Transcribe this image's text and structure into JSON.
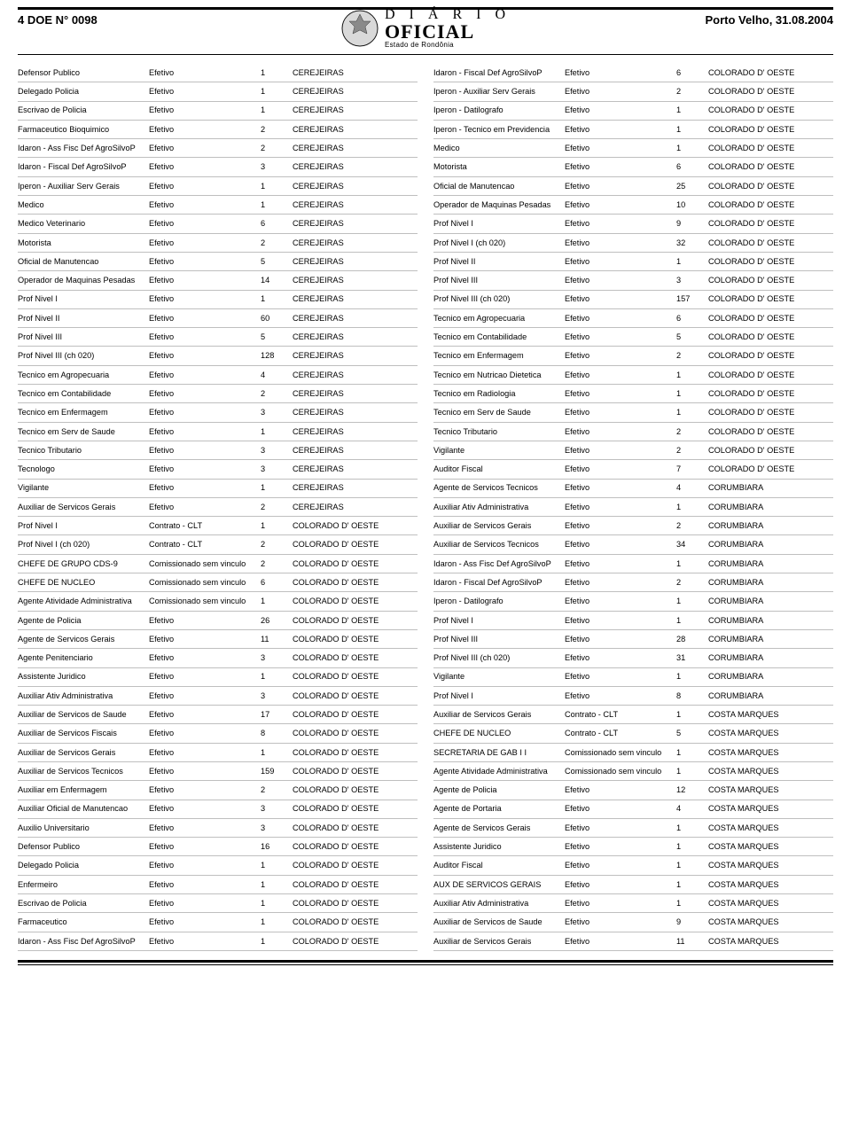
{
  "header": {
    "left": "4   DOE N° 0098",
    "right": "Porto Velho, 31.08.2004",
    "masthead_line1": "D I Á R I O",
    "masthead_line2": "OFICIAL",
    "masthead_sub": "Estado de Rondônia"
  },
  "colors": {
    "rule": "#000000",
    "row_border": "#bfbfbf",
    "text": "#000000",
    "seal_fill": "#8a8a8a",
    "seal_stroke": "#333333"
  },
  "left_rows": [
    {
      "cargo": "Defensor Publico",
      "vinc": "Efetivo",
      "qtd": "1",
      "loc": "CEREJEIRAS"
    },
    {
      "cargo": "Delegado Policia",
      "vinc": "Efetivo",
      "qtd": "1",
      "loc": "CEREJEIRAS"
    },
    {
      "cargo": "Escrivao de Policia",
      "vinc": "Efetivo",
      "qtd": "1",
      "loc": "CEREJEIRAS"
    },
    {
      "cargo": "Farmaceutico Bioquimico",
      "vinc": "Efetivo",
      "qtd": "2",
      "loc": "CEREJEIRAS"
    },
    {
      "cargo": "Idaron - Ass Fisc Def AgroSilvoP",
      "vinc": "Efetivo",
      "qtd": "2",
      "loc": "CEREJEIRAS"
    },
    {
      "cargo": "Idaron - Fiscal Def AgroSilvoP",
      "vinc": "Efetivo",
      "qtd": "3",
      "loc": "CEREJEIRAS"
    },
    {
      "cargo": "Iperon - Auxiliar Serv Gerais",
      "vinc": "Efetivo",
      "qtd": "1",
      "loc": "CEREJEIRAS"
    },
    {
      "cargo": "Medico",
      "vinc": "Efetivo",
      "qtd": "1",
      "loc": "CEREJEIRAS"
    },
    {
      "cargo": "Medico Veterinario",
      "vinc": "Efetivo",
      "qtd": "6",
      "loc": "CEREJEIRAS"
    },
    {
      "cargo": "Motorista",
      "vinc": "Efetivo",
      "qtd": "2",
      "loc": "CEREJEIRAS"
    },
    {
      "cargo": "Oficial de Manutencao",
      "vinc": "Efetivo",
      "qtd": "5",
      "loc": "CEREJEIRAS"
    },
    {
      "cargo": "Operador de Maquinas Pesadas",
      "vinc": "Efetivo",
      "qtd": "14",
      "loc": "CEREJEIRAS"
    },
    {
      "cargo": "Prof Nivel I",
      "vinc": "Efetivo",
      "qtd": "1",
      "loc": "CEREJEIRAS"
    },
    {
      "cargo": "Prof Nivel II",
      "vinc": "Efetivo",
      "qtd": "60",
      "loc": "CEREJEIRAS"
    },
    {
      "cargo": "Prof Nivel III",
      "vinc": "Efetivo",
      "qtd": "5",
      "loc": "CEREJEIRAS"
    },
    {
      "cargo": "Prof Nivel III (ch 020)",
      "vinc": "Efetivo",
      "qtd": "128",
      "loc": "CEREJEIRAS"
    },
    {
      "cargo": "Tecnico em Agropecuaria",
      "vinc": "Efetivo",
      "qtd": "4",
      "loc": "CEREJEIRAS"
    },
    {
      "cargo": "Tecnico em Contabilidade",
      "vinc": "Efetivo",
      "qtd": "2",
      "loc": "CEREJEIRAS"
    },
    {
      "cargo": "Tecnico em Enfermagem",
      "vinc": "Efetivo",
      "qtd": "3",
      "loc": "CEREJEIRAS"
    },
    {
      "cargo": "Tecnico em Serv de Saude",
      "vinc": "Efetivo",
      "qtd": "1",
      "loc": "CEREJEIRAS"
    },
    {
      "cargo": "Tecnico Tributario",
      "vinc": "Efetivo",
      "qtd": "3",
      "loc": "CEREJEIRAS"
    },
    {
      "cargo": "Tecnologo",
      "vinc": "Efetivo",
      "qtd": "3",
      "loc": "CEREJEIRAS"
    },
    {
      "cargo": "Vigilante",
      "vinc": "Efetivo",
      "qtd": "1",
      "loc": "CEREJEIRAS"
    },
    {
      "cargo": "Auxiliar de Servicos Gerais",
      "vinc": "Efetivo",
      "qtd": "2",
      "loc": "CEREJEIRAS"
    },
    {
      "cargo": "Prof Nivel I",
      "vinc": "Contrato - CLT",
      "qtd": "1",
      "loc": "COLORADO D' OESTE"
    },
    {
      "cargo": "Prof Nivel I (ch 020)",
      "vinc": "Contrato - CLT",
      "qtd": "2",
      "loc": "COLORADO D' OESTE"
    },
    {
      "cargo": "CHEFE DE GRUPO    CDS-9",
      "vinc": "Comissionado sem vinculo",
      "qtd": "2",
      "loc": "COLORADO D' OESTE"
    },
    {
      "cargo": "CHEFE DE NUCLEO",
      "vinc": "Comissionado sem vinculo",
      "qtd": "6",
      "loc": "COLORADO D' OESTE"
    },
    {
      "cargo": "Agente Atividade Administrativa",
      "vinc": "Comissionado sem vinculo",
      "qtd": "1",
      "loc": "COLORADO D' OESTE"
    },
    {
      "cargo": "Agente de Policia",
      "vinc": "Efetivo",
      "qtd": "26",
      "loc": "COLORADO D' OESTE"
    },
    {
      "cargo": "Agente de Servicos Gerais",
      "vinc": "Efetivo",
      "qtd": "11",
      "loc": "COLORADO D' OESTE"
    },
    {
      "cargo": "Agente Penitenciario",
      "vinc": "Efetivo",
      "qtd": "3",
      "loc": "COLORADO D' OESTE"
    },
    {
      "cargo": "Assistente Juridico",
      "vinc": "Efetivo",
      "qtd": "1",
      "loc": "COLORADO D' OESTE"
    },
    {
      "cargo": "Auxiliar Ativ Administrativa",
      "vinc": "Efetivo",
      "qtd": "3",
      "loc": "COLORADO D' OESTE"
    },
    {
      "cargo": "Auxiliar de Servicos de Saude",
      "vinc": "Efetivo",
      "qtd": "17",
      "loc": "COLORADO D' OESTE"
    },
    {
      "cargo": "Auxiliar de Servicos Fiscais",
      "vinc": "Efetivo",
      "qtd": "8",
      "loc": "COLORADO D' OESTE"
    },
    {
      "cargo": "Auxiliar de Servicos Gerais",
      "vinc": "Efetivo",
      "qtd": "1",
      "loc": "COLORADO D' OESTE"
    },
    {
      "cargo": "Auxiliar de Servicos Tecnicos",
      "vinc": "Efetivo",
      "qtd": "159",
      "loc": "COLORADO D' OESTE"
    },
    {
      "cargo": "Auxiliar em Enfermagem",
      "vinc": "Efetivo",
      "qtd": "2",
      "loc": "COLORADO D' OESTE"
    },
    {
      "cargo": "Auxiliar Oficial de Manutencao",
      "vinc": "Efetivo",
      "qtd": "3",
      "loc": "COLORADO D' OESTE"
    },
    {
      "cargo": "Auxilio Universitario",
      "vinc": "Efetivo",
      "qtd": "3",
      "loc": "COLORADO D' OESTE"
    },
    {
      "cargo": "Defensor Publico",
      "vinc": "Efetivo",
      "qtd": "16",
      "loc": "COLORADO D' OESTE"
    },
    {
      "cargo": "Delegado Policia",
      "vinc": "Efetivo",
      "qtd": "1",
      "loc": "COLORADO D' OESTE"
    },
    {
      "cargo": "Enfermeiro",
      "vinc": "Efetivo",
      "qtd": "1",
      "loc": "COLORADO D' OESTE"
    },
    {
      "cargo": "Escrivao de Policia",
      "vinc": "Efetivo",
      "qtd": "1",
      "loc": "COLORADO D' OESTE"
    },
    {
      "cargo": "Farmaceutico",
      "vinc": "Efetivo",
      "qtd": "1",
      "loc": "COLORADO D' OESTE"
    },
    {
      "cargo": "Idaron - Ass Fisc Def AgroSilvoP",
      "vinc": "Efetivo",
      "qtd": "1",
      "loc": "COLORADO D' OESTE"
    }
  ],
  "right_rows": [
    {
      "cargo": "Idaron - Fiscal Def AgroSilvoP",
      "vinc": "Efetivo",
      "qtd": "6",
      "loc": "COLORADO D' OESTE"
    },
    {
      "cargo": "Iperon - Auxiliar Serv Gerais",
      "vinc": "Efetivo",
      "qtd": "2",
      "loc": "COLORADO D' OESTE"
    },
    {
      "cargo": "Iperon - Datilografo",
      "vinc": "Efetivo",
      "qtd": "1",
      "loc": "COLORADO D' OESTE"
    },
    {
      "cargo": "Iperon - Tecnico em Previdencia",
      "vinc": "Efetivo",
      "qtd": "1",
      "loc": "COLORADO D' OESTE"
    },
    {
      "cargo": "Medico",
      "vinc": "Efetivo",
      "qtd": "1",
      "loc": "COLORADO D' OESTE"
    },
    {
      "cargo": "Motorista",
      "vinc": "Efetivo",
      "qtd": "6",
      "loc": "COLORADO D' OESTE"
    },
    {
      "cargo": "Oficial de Manutencao",
      "vinc": "Efetivo",
      "qtd": "25",
      "loc": "COLORADO D' OESTE"
    },
    {
      "cargo": "Operador de Maquinas Pesadas",
      "vinc": "Efetivo",
      "qtd": "10",
      "loc": "COLORADO D' OESTE"
    },
    {
      "cargo": "Prof Nivel I",
      "vinc": "Efetivo",
      "qtd": "9",
      "loc": "COLORADO D' OESTE"
    },
    {
      "cargo": "Prof Nivel I (ch 020)",
      "vinc": "Efetivo",
      "qtd": "32",
      "loc": "COLORADO D' OESTE"
    },
    {
      "cargo": "Prof Nivel II",
      "vinc": "Efetivo",
      "qtd": "1",
      "loc": "COLORADO D' OESTE"
    },
    {
      "cargo": "Prof Nivel III",
      "vinc": "Efetivo",
      "qtd": "3",
      "loc": "COLORADO D' OESTE"
    },
    {
      "cargo": "Prof Nivel III (ch 020)",
      "vinc": "Efetivo",
      "qtd": "157",
      "loc": "COLORADO D' OESTE"
    },
    {
      "cargo": "Tecnico em Agropecuaria",
      "vinc": "Efetivo",
      "qtd": "6",
      "loc": "COLORADO D' OESTE"
    },
    {
      "cargo": "Tecnico em Contabilidade",
      "vinc": "Efetivo",
      "qtd": "5",
      "loc": "COLORADO D' OESTE"
    },
    {
      "cargo": "Tecnico em Enfermagem",
      "vinc": "Efetivo",
      "qtd": "2",
      "loc": "COLORADO D' OESTE"
    },
    {
      "cargo": "Tecnico em Nutricao Dietetica",
      "vinc": "Efetivo",
      "qtd": "1",
      "loc": "COLORADO D' OESTE"
    },
    {
      "cargo": "Tecnico em Radiologia",
      "vinc": "Efetivo",
      "qtd": "1",
      "loc": "COLORADO D' OESTE"
    },
    {
      "cargo": "Tecnico em Serv de Saude",
      "vinc": "Efetivo",
      "qtd": "1",
      "loc": "COLORADO D' OESTE"
    },
    {
      "cargo": "Tecnico Tributario",
      "vinc": "Efetivo",
      "qtd": "2",
      "loc": "COLORADO D' OESTE"
    },
    {
      "cargo": "Vigilante",
      "vinc": "Efetivo",
      "qtd": "2",
      "loc": "COLORADO D' OESTE"
    },
    {
      "cargo": "Auditor Fiscal",
      "vinc": "Efetivo",
      "qtd": "7",
      "loc": "COLORADO D' OESTE"
    },
    {
      "cargo": "Agente de Servicos Tecnicos",
      "vinc": "Efetivo",
      "qtd": "4",
      "loc": "CORUMBIARA"
    },
    {
      "cargo": "Auxiliar Ativ Administrativa",
      "vinc": "Efetivo",
      "qtd": "1",
      "loc": "CORUMBIARA"
    },
    {
      "cargo": "Auxiliar de Servicos Gerais",
      "vinc": "Efetivo",
      "qtd": "2",
      "loc": "CORUMBIARA"
    },
    {
      "cargo": "Auxiliar de Servicos Tecnicos",
      "vinc": "Efetivo",
      "qtd": "34",
      "loc": "CORUMBIARA"
    },
    {
      "cargo": "Idaron - Ass Fisc Def AgroSilvoP",
      "vinc": "Efetivo",
      "qtd": "1",
      "loc": "CORUMBIARA"
    },
    {
      "cargo": "Idaron - Fiscal Def AgroSilvoP",
      "vinc": "Efetivo",
      "qtd": "2",
      "loc": "CORUMBIARA"
    },
    {
      "cargo": "Iperon - Datilografo",
      "vinc": "Efetivo",
      "qtd": "1",
      "loc": "CORUMBIARA"
    },
    {
      "cargo": "Prof Nivel I",
      "vinc": "Efetivo",
      "qtd": "1",
      "loc": "CORUMBIARA"
    },
    {
      "cargo": "Prof Nivel III",
      "vinc": "Efetivo",
      "qtd": "28",
      "loc": "CORUMBIARA"
    },
    {
      "cargo": "Prof Nivel III (ch 020)",
      "vinc": "Efetivo",
      "qtd": "31",
      "loc": "CORUMBIARA"
    },
    {
      "cargo": "Vigilante",
      "vinc": "Efetivo",
      "qtd": "1",
      "loc": "CORUMBIARA"
    },
    {
      "cargo": "Prof Nivel I",
      "vinc": "Efetivo",
      "qtd": "8",
      "loc": "CORUMBIARA"
    },
    {
      "cargo": "Auxiliar de Servicos Gerais",
      "vinc": "Contrato - CLT",
      "qtd": "1",
      "loc": "COSTA MARQUES"
    },
    {
      "cargo": "CHEFE DE NUCLEO",
      "vinc": "Contrato - CLT",
      "qtd": "5",
      "loc": "COSTA MARQUES"
    },
    {
      "cargo": "SECRETARIA DE GAB I I",
      "vinc": "Comissionado sem vinculo",
      "qtd": "1",
      "loc": "COSTA MARQUES"
    },
    {
      "cargo": "Agente Atividade Administrativa",
      "vinc": "Comissionado sem vinculo",
      "qtd": "1",
      "loc": "COSTA MARQUES"
    },
    {
      "cargo": "Agente de Policia",
      "vinc": "Efetivo",
      "qtd": "12",
      "loc": "COSTA MARQUES"
    },
    {
      "cargo": "Agente de Portaria",
      "vinc": "Efetivo",
      "qtd": "4",
      "loc": "COSTA MARQUES"
    },
    {
      "cargo": "Agente de Servicos Gerais",
      "vinc": "Efetivo",
      "qtd": "1",
      "loc": "COSTA MARQUES"
    },
    {
      "cargo": "Assistente Juridico",
      "vinc": "Efetivo",
      "qtd": "1",
      "loc": "COSTA MARQUES"
    },
    {
      "cargo": "Auditor Fiscal",
      "vinc": "Efetivo",
      "qtd": "1",
      "loc": "COSTA MARQUES"
    },
    {
      "cargo": "AUX DE SERVICOS GERAIS",
      "vinc": "Efetivo",
      "qtd": "1",
      "loc": "COSTA MARQUES"
    },
    {
      "cargo": "Auxiliar Ativ Administrativa",
      "vinc": "Efetivo",
      "qtd": "1",
      "loc": "COSTA MARQUES"
    },
    {
      "cargo": "Auxiliar de Servicos de Saude",
      "vinc": "Efetivo",
      "qtd": "9",
      "loc": "COSTA MARQUES"
    },
    {
      "cargo": "Auxiliar de Servicos Gerais",
      "vinc": "Efetivo",
      "qtd": "11",
      "loc": "COSTA MARQUES"
    }
  ]
}
